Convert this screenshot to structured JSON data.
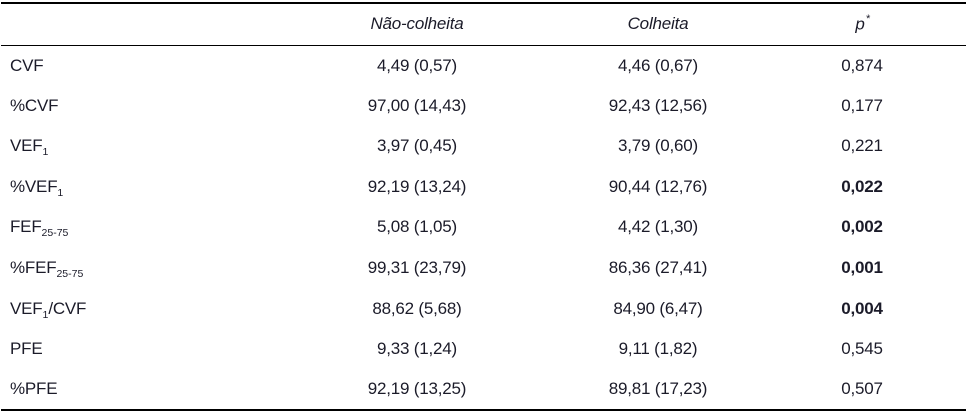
{
  "colors": {
    "text": "#1b1b29",
    "rule": "#000000",
    "background": "#ffffff"
  },
  "table": {
    "headers": {
      "parameter": "",
      "nao_colheita": "Não-colheita",
      "colheita": "Colheita",
      "p": "p",
      "p_sup": "*"
    },
    "rows": [
      {
        "pre": "CVF",
        "sub": "",
        "post": "",
        "nao_colheita": "4,49 (0,57)",
        "colheita": "4,46 (0,67)",
        "p": "0,874",
        "p_bold": false
      },
      {
        "pre": "%CVF",
        "sub": "",
        "post": "",
        "nao_colheita": "97,00 (14,43)",
        "colheita": "92,43 (12,56)",
        "p": "0,177",
        "p_bold": false
      },
      {
        "pre": "VEF",
        "sub": "1",
        "post": "",
        "nao_colheita": "3,97 (0,45)",
        "colheita": "3,79 (0,60)",
        "p": "0,221",
        "p_bold": false
      },
      {
        "pre": "%VEF",
        "sub": "1",
        "post": "",
        "nao_colheita": "92,19 (13,24)",
        "colheita": "90,44 (12,76)",
        "p": "0,022",
        "p_bold": true
      },
      {
        "pre": "FEF",
        "sub": "25-75",
        "post": "",
        "nao_colheita": "5,08 (1,05)",
        "colheita": "4,42 (1,30)",
        "p": "0,002",
        "p_bold": true
      },
      {
        "pre": "%FEF",
        "sub": "25-75",
        "post": "",
        "nao_colheita": "99,31 (23,79)",
        "colheita": "86,36 (27,41)",
        "p": "0,001",
        "p_bold": true
      },
      {
        "pre": "VEF",
        "sub": "1",
        "post": "/CVF",
        "nao_colheita": "88,62 (5,68)",
        "colheita": "84,90 (6,47)",
        "p": "0,004",
        "p_bold": true
      },
      {
        "pre": "PFE",
        "sub": "",
        "post": "",
        "nao_colheita": "9,33 (1,24)",
        "colheita": "9,11 (1,82)",
        "p": "0,545",
        "p_bold": false
      },
      {
        "pre": "%PFE",
        "sub": "",
        "post": "",
        "nao_colheita": "92,19 (13,25)",
        "colheita": "89,81 (17,23)",
        "p": "0,507",
        "p_bold": false
      }
    ]
  }
}
